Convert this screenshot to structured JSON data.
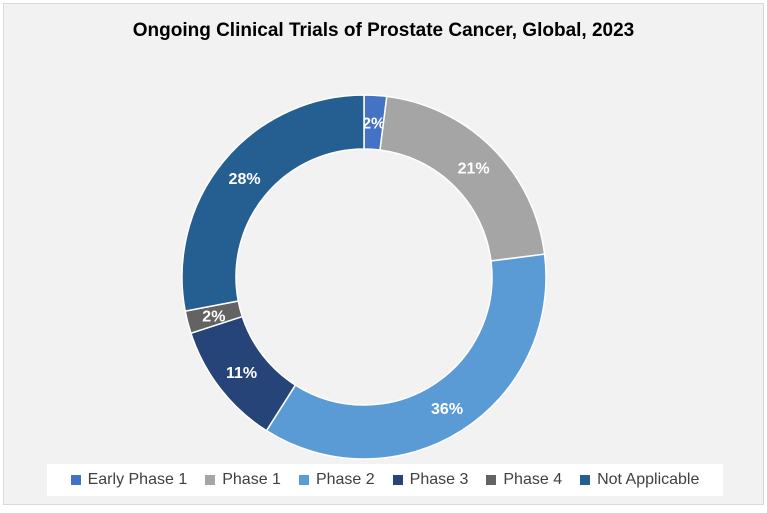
{
  "chart_data": {
    "type": "pie",
    "variant": "donut",
    "title": "Ongoing Clinical Trials of Prostate Cancer, Global, 2023",
    "categories": [
      "Early Phase 1",
      "Phase 1",
      "Phase 2",
      "Phase 3",
      "Phase 4",
      "Not Applicable"
    ],
    "values": [
      2,
      21,
      36,
      11,
      2,
      28
    ],
    "labels": [
      "2%",
      "21%",
      "36%",
      "11%",
      "2%",
      "28%"
    ],
    "colors": [
      "#4472c4",
      "#a5a5a5",
      "#5b9bd5",
      "#264478",
      "#636363",
      "#255e91"
    ],
    "legend_position": "bottom"
  }
}
